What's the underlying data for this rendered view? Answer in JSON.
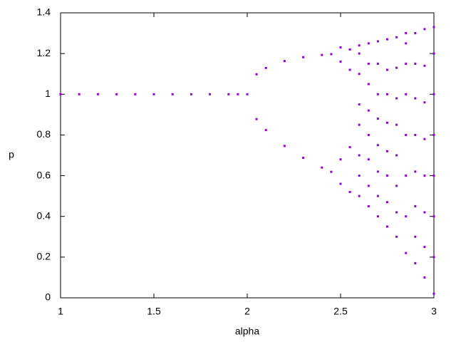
{
  "chart_data": {
    "type": "scatter",
    "xlabel": "alpha",
    "ylabel": "p",
    "color": "#9400d3",
    "xlim": [
      1,
      3
    ],
    "ylim": [
      0,
      1.4
    ],
    "xticks": [
      1,
      1.5,
      2,
      2.5,
      3
    ],
    "yticks": [
      0,
      0.2,
      0.4,
      0.6,
      0.8,
      1,
      1.2,
      1.4
    ],
    "x": [
      1,
      1.1,
      1.2,
      1.3,
      1.4,
      1.5,
      1.6,
      1.7,
      1.8,
      1.9,
      1.95,
      2,
      2.05,
      2.05,
      2.1,
      2.1,
      2.2,
      2.2,
      2.3,
      2.3,
      2.4,
      2.4,
      2.45,
      2.45,
      2.5,
      2.5,
      2.5,
      2.5,
      2.55,
      2.55,
      2.55,
      2.55,
      2.6,
      2.6,
      2.6,
      2.6,
      2.6,
      2.6,
      2.6,
      2.6,
      2.65,
      2.65,
      2.65,
      2.65,
      2.65,
      2.65,
      2.65,
      2.65,
      2.7,
      2.7,
      2.7,
      2.7,
      2.7,
      2.7,
      2.7,
      2.7,
      2.75,
      2.75,
      2.75,
      2.75,
      2.75,
      2.75,
      2.75,
      2.75,
      2.8,
      2.8,
      2.8,
      2.8,
      2.8,
      2.8,
      2.8,
      2.8,
      2.85,
      2.85,
      2.85,
      2.85,
      2.85,
      2.85,
      2.85,
      2.85,
      2.9,
      2.9,
      2.9,
      2.9,
      2.9,
      2.9,
      2.9,
      2.9,
      2.95,
      2.95,
      2.95,
      2.95,
      2.95,
      2.95,
      2.95,
      2.95,
      3,
      3,
      3,
      3,
      3,
      3,
      3,
      3
    ],
    "values": [
      1,
      1,
      1,
      1,
      1,
      1,
      1,
      1,
      1,
      1,
      1,
      1,
      1.098,
      0.878,
      1.129,
      0.824,
      1.163,
      0.746,
      1.182,
      0.688,
      1.193,
      0.64,
      1.197,
      0.619,
      1.23,
      1.16,
      0.68,
      0.56,
      1.22,
      1.12,
      0.74,
      0.52,
      0.5,
      0.6,
      0.7,
      0.85,
      0.95,
      1.1,
      1.2,
      1.24,
      0.45,
      0.55,
      0.68,
      0.8,
      0.92,
      1.05,
      1.15,
      1.25,
      0.4,
      0.5,
      0.62,
      0.75,
      0.88,
      1.0,
      1.15,
      1.26,
      0.35,
      0.47,
      0.6,
      0.72,
      0.86,
      1.0,
      1.12,
      1.27,
      0.3,
      0.42,
      0.55,
      0.7,
      0.85,
      0.98,
      1.13,
      1.28,
      0.22,
      0.4,
      0.6,
      0.8,
      1.0,
      1.15,
      1.25,
      1.3,
      0.17,
      0.3,
      0.45,
      0.62,
      0.8,
      0.98,
      1.15,
      1.3,
      0.1,
      0.25,
      0.42,
      0.6,
      0.78,
      0.96,
      1.14,
      1.32,
      0.02,
      0.2,
      0.4,
      0.6,
      0.8,
      1.0,
      1.2,
      1.33
    ]
  }
}
